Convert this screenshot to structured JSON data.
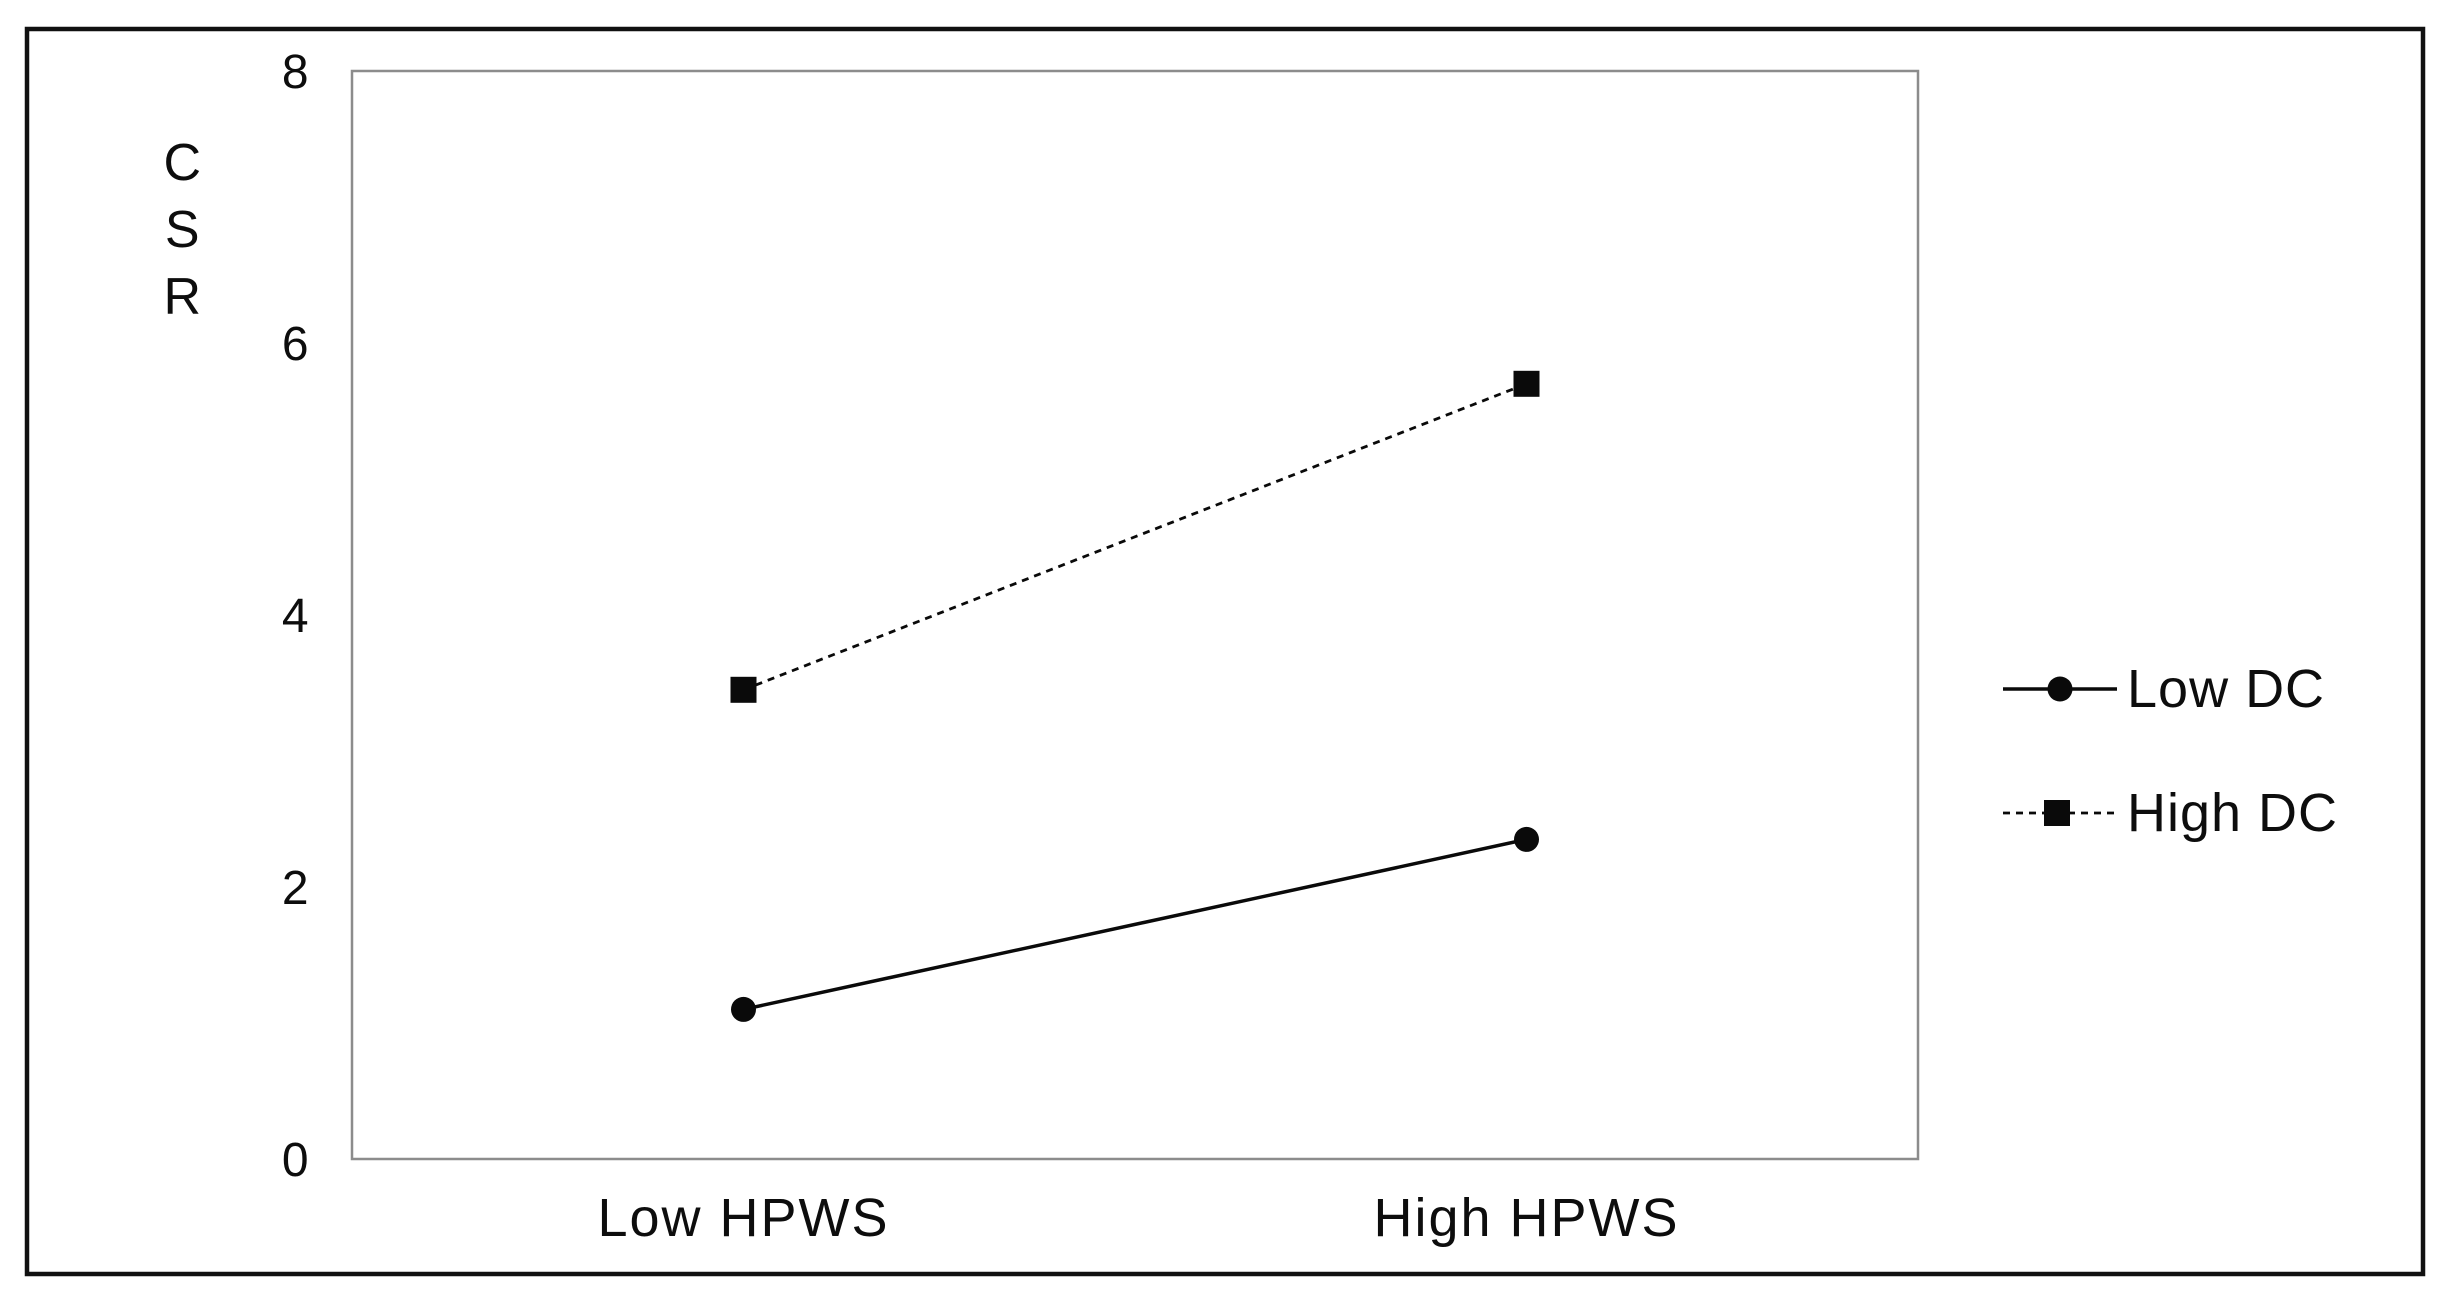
{
  "figure": {
    "background": "#ffffff",
    "outer_border_color": "#111111",
    "plot_border_color": "#8c8c8c",
    "series_color": "#0a0a0a"
  },
  "chart_data": {
    "type": "line",
    "title": "",
    "xlabel": "",
    "ylabel": "CSR",
    "ylabel_stacked": [
      "C",
      "S",
      "R"
    ],
    "categories": [
      "Low HPWS",
      "High HPWS"
    ],
    "ylim": [
      0,
      8
    ],
    "yticks": [
      8,
      6,
      4,
      2,
      0
    ],
    "grid": false,
    "legend_position": "right-outside",
    "series": [
      {
        "name": "Low DC",
        "marker": "circle",
        "line_style": "solid",
        "color": "#0a0a0a",
        "values": [
          1.1,
          2.35
        ]
      },
      {
        "name": "High DC",
        "marker": "square",
        "line_style": "dashed",
        "color": "#0a0a0a",
        "values": [
          3.45,
          5.7
        ]
      }
    ]
  }
}
